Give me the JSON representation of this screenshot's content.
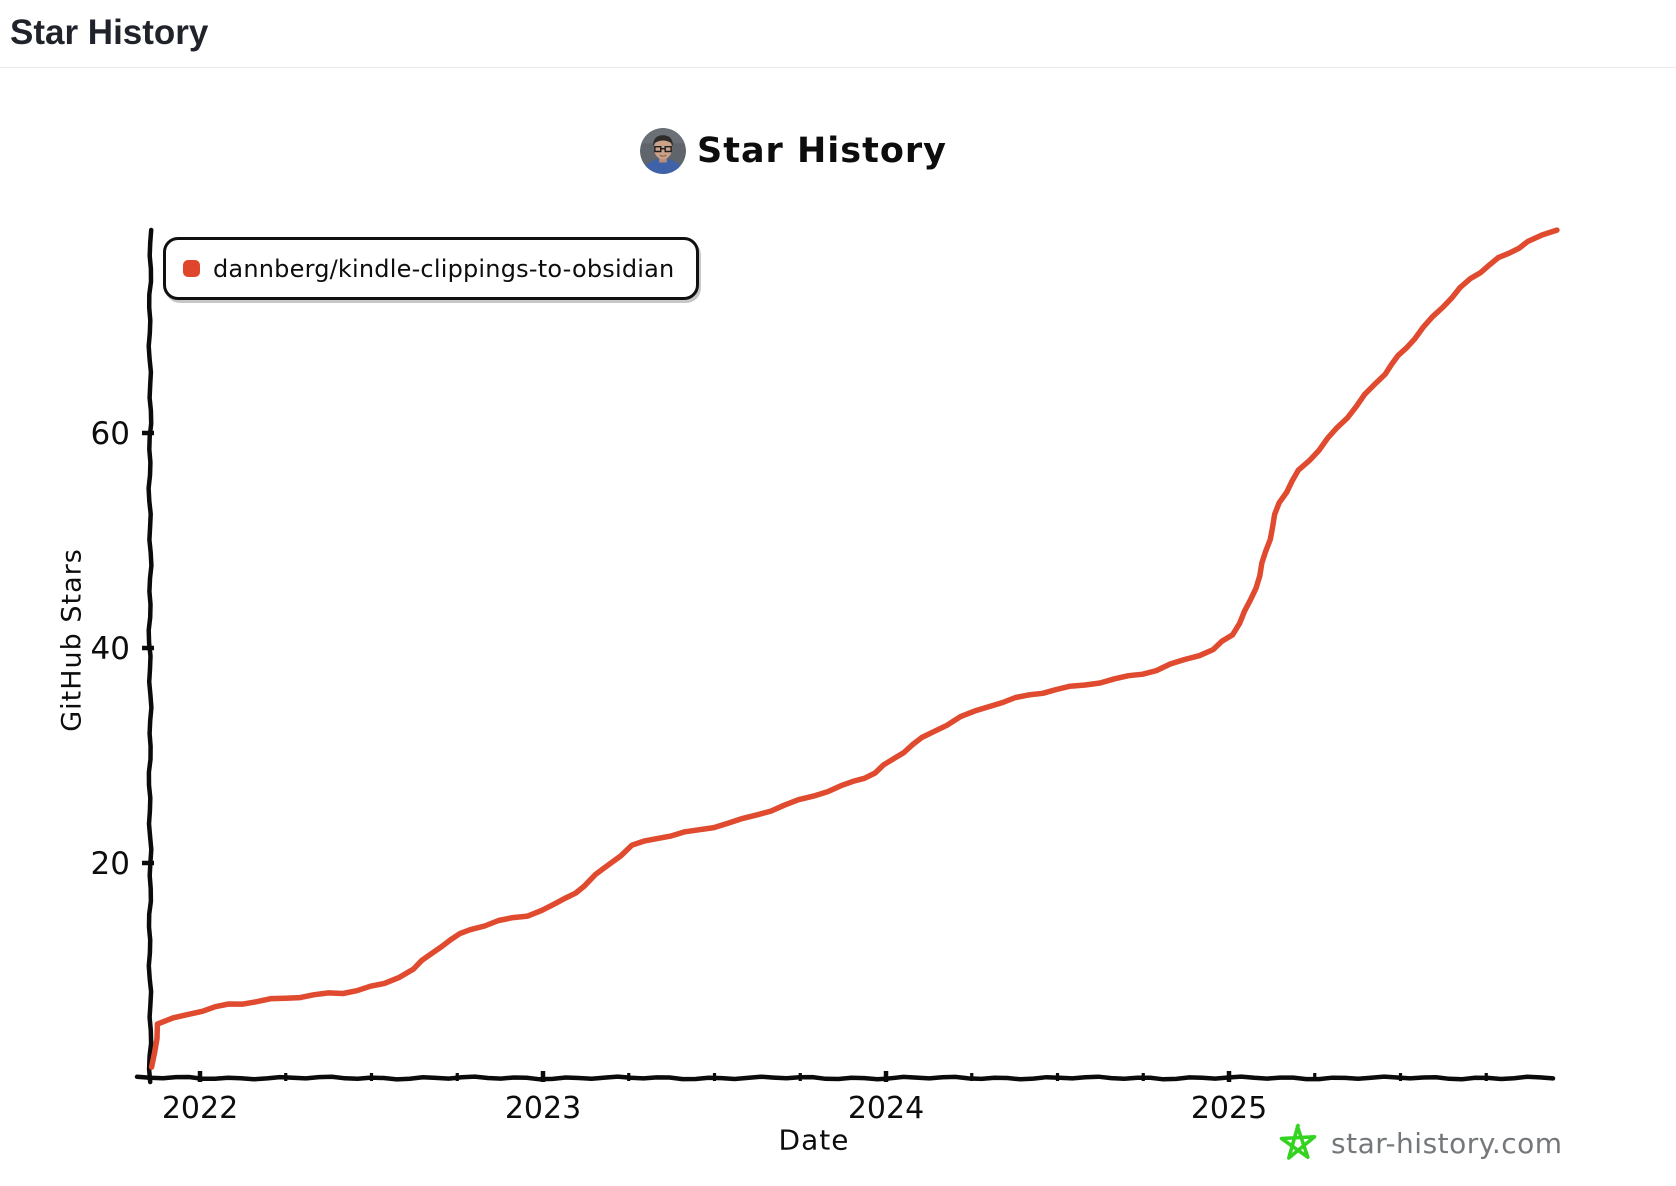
{
  "page": {
    "title": "Star History"
  },
  "chart": {
    "title": "Star History",
    "avatar_icon": "dannberg-avatar",
    "legend": {
      "label": "dannberg/kindle-clippings-to-obsidian",
      "marker_color": "#e0462b"
    },
    "watermark": {
      "site": "star-history.com",
      "icon": "green-star-icon",
      "icon_color": "#35d321",
      "text_color": "#74787b"
    }
  },
  "chart_data": {
    "type": "line",
    "title": "Star History",
    "xlabel": "Date",
    "ylabel": "GitHub Stars",
    "x_ticks": [
      "2022",
      "2023",
      "2024",
      "2025"
    ],
    "y_ticks": [
      20,
      40,
      60
    ],
    "ylim": [
      0,
      80
    ],
    "xlim": [
      "2021-11",
      "2026-01"
    ],
    "grid": false,
    "legend_position": "top-left",
    "style": "xkcd-sketch",
    "series": [
      {
        "name": "dannberg/kindle-clippings-to-obsidian",
        "color": "#e04a2f",
        "points": [
          [
            "2021-11-12",
            1
          ],
          [
            "2021-11-18",
            5
          ],
          [
            "2021-12-20",
            6
          ],
          [
            "2022-02-01",
            6.9
          ],
          [
            "2022-04-01",
            7.4
          ],
          [
            "2022-06-01",
            7.9
          ],
          [
            "2022-07-15",
            8.8
          ],
          [
            "2022-08-15",
            10.2
          ],
          [
            "2022-09-15",
            12.3
          ],
          [
            "2022-10-15",
            13.8
          ],
          [
            "2022-11-15",
            14.6
          ],
          [
            "2022-12-15",
            15.2
          ],
          [
            "2023-01-15",
            16.2
          ],
          [
            "2023-02-15",
            17.8
          ],
          [
            "2023-03-10",
            19.8
          ],
          [
            "2023-04-05",
            21.6
          ],
          [
            "2023-05-01",
            22.4
          ],
          [
            "2023-06-15",
            23.1
          ],
          [
            "2023-08-01",
            24.0
          ],
          [
            "2023-09-15",
            25.3
          ],
          [
            "2023-10-15",
            26.3
          ],
          [
            "2023-11-15",
            27.2
          ],
          [
            "2023-12-20",
            28.4
          ],
          [
            "2024-01-20",
            30.3
          ],
          [
            "2024-02-20",
            32.2
          ],
          [
            "2024-03-20",
            33.6
          ],
          [
            "2024-04-20",
            34.7
          ],
          [
            "2024-06-01",
            35.6
          ],
          [
            "2024-07-15",
            36.3
          ],
          [
            "2024-09-01",
            37.1
          ],
          [
            "2024-10-15",
            38.0
          ],
          [
            "2024-11-15",
            38.9
          ],
          [
            "2024-12-15",
            39.8
          ],
          [
            "2025-01-05",
            41.2
          ],
          [
            "2025-01-25",
            44.5
          ],
          [
            "2025-02-10",
            49
          ],
          [
            "2025-02-25",
            53.5
          ],
          [
            "2025-03-15",
            56.5
          ],
          [
            "2025-04-15",
            59.5
          ],
          [
            "2025-05-15",
            62.5
          ],
          [
            "2025-06-15",
            65.5
          ],
          [
            "2025-07-15",
            68.8
          ],
          [
            "2025-08-15",
            71.8
          ],
          [
            "2025-09-15",
            74.3
          ],
          [
            "2025-10-15",
            76.2
          ],
          [
            "2025-11-15",
            77.8
          ],
          [
            "2025-12-15",
            79
          ]
        ]
      }
    ]
  }
}
